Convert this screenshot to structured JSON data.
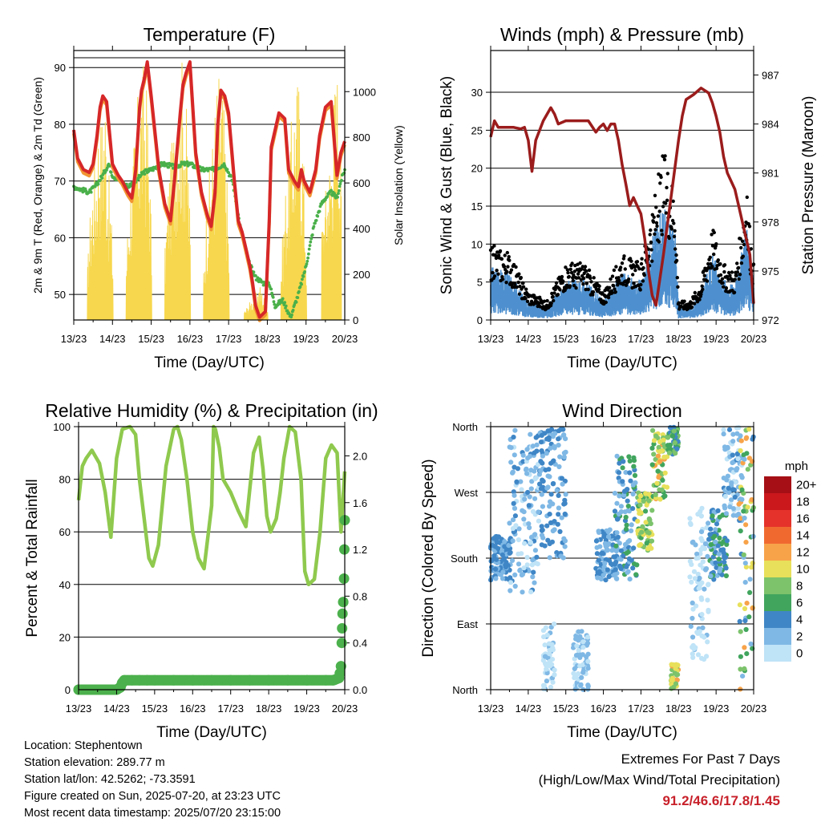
{
  "colors": {
    "t2m": "#d62728",
    "t9m": "#f29533",
    "td": "#4ab04a",
    "solar": "#f7d74d",
    "gust": "#000000",
    "wind": "#4e90cf",
    "pressure": "#9b1c1c",
    "rh": "#8fc94e",
    "precip": "#4cb14c"
  },
  "chart_data": [
    {
      "id": "temperature",
      "type": "line",
      "title": "Temperature (F)",
      "xlabel": "Time (Day/UTC)",
      "ylabel": "2m & 9m T (Red, Orange) & 2m Td (Green)",
      "y2label": "Solar Insolation (Yellow)",
      "xticks": [
        "13/23",
        "14/23",
        "15/23",
        "16/23",
        "17/23",
        "18/23",
        "19/23",
        "20/23"
      ],
      "xlim": [
        0,
        7
      ],
      "ylim": [
        45.5,
        93
      ],
      "yticks": [
        50,
        60,
        70,
        80,
        90
      ],
      "y2lim": [
        0,
        1180
      ],
      "y2ticks": [
        0,
        200,
        400,
        600,
        800,
        1000
      ],
      "grid": true,
      "series": [
        {
          "role": "t2m",
          "x": [
            0,
            0.1,
            0.25,
            0.4,
            0.5,
            0.6,
            0.68,
            0.75,
            0.85,
            1.0,
            1.15,
            1.25,
            1.4,
            1.5,
            1.6,
            1.7,
            1.75,
            1.82,
            1.9,
            2.0,
            2.2,
            2.35,
            2.45,
            2.5,
            2.6,
            2.75,
            2.82,
            2.9,
            3.0,
            3.15,
            3.3,
            3.45,
            3.55,
            3.65,
            3.72,
            3.8,
            3.9,
            4.0,
            4.15,
            4.25,
            4.35,
            4.45,
            4.55,
            4.62,
            4.7,
            4.8,
            4.95,
            5.05,
            5.1,
            5.3,
            5.45,
            5.55,
            5.7,
            5.8,
            5.88,
            5.95,
            6.1,
            6.25,
            6.35,
            6.5,
            6.65,
            6.72,
            6.8,
            6.9,
            7.0
          ],
          "y": [
            79,
            74,
            72,
            71.5,
            73,
            78,
            83,
            85,
            84,
            73,
            71,
            70,
            68,
            67,
            72,
            83,
            86,
            88,
            91,
            85,
            72,
            66,
            64,
            63,
            70,
            82,
            87,
            89,
            91,
            75,
            68,
            64,
            62,
            68,
            80,
            86,
            85,
            82,
            70,
            63,
            61,
            58,
            55,
            52,
            48,
            46,
            47,
            63,
            76,
            82,
            81,
            72,
            70,
            69,
            72,
            70,
            68,
            72,
            78,
            83,
            84,
            78,
            71,
            75,
            77
          ]
        },
        {
          "role": "td",
          "x": [
            0,
            0.2,
            0.4,
            0.55,
            0.75,
            0.9,
            1.0,
            1.2,
            1.4,
            1.6,
            1.8,
            2.0,
            2.3,
            2.6,
            2.8,
            3.0,
            3.3,
            3.6,
            3.9,
            4.1,
            4.3,
            4.5,
            4.7,
            4.9,
            5.05,
            5.2,
            5.4,
            5.6,
            5.8,
            6.0,
            6.2,
            6.4,
            6.5,
            6.65,
            6.8,
            6.9,
            7.0
          ],
          "y": [
            69,
            68.5,
            68,
            69,
            71,
            73,
            71,
            70,
            69,
            70,
            71.5,
            72,
            73,
            72.5,
            73,
            73,
            72,
            72,
            73,
            70,
            62,
            56,
            53,
            52,
            52,
            48,
            49,
            46,
            50,
            55,
            62,
            66,
            67,
            68,
            67,
            70,
            72
          ]
        }
      ],
      "solar_days": [
        {
          "x": [
            0.35,
            0.45,
            0.55,
            0.6,
            0.65,
            0.7,
            0.75,
            0.8,
            0.85,
            0.9,
            0.95,
            1.0
          ],
          "peaks": [
            250,
            600,
            720,
            820,
            1000,
            900,
            1000,
            1100,
            780,
            640,
            520,
            300
          ]
        },
        {
          "x": [
            1.35,
            1.45,
            1.55,
            1.6,
            1.65,
            1.7,
            1.75,
            1.8,
            1.85,
            1.9,
            1.95,
            2.0
          ],
          "peaks": [
            300,
            650,
            800,
            900,
            1010,
            1080,
            1120,
            1150,
            1090,
            980,
            760,
            400
          ]
        },
        {
          "x": [
            2.35,
            2.45,
            2.55,
            2.6,
            2.65,
            2.7,
            2.75,
            2.8,
            2.85,
            2.9,
            2.95,
            3.0
          ],
          "peaks": [
            320,
            680,
            820,
            960,
            1050,
            1100,
            1140,
            1170,
            1120,
            960,
            760,
            420
          ]
        },
        {
          "x": [
            3.35,
            3.45,
            3.55,
            3.6,
            3.65,
            3.7,
            3.75,
            3.8,
            3.85,
            3.9,
            3.95,
            4.0
          ],
          "peaks": [
            280,
            600,
            760,
            880,
            1000,
            1100,
            1120,
            1150,
            1020,
            860,
            640,
            360
          ]
        },
        {
          "x": [
            4.4,
            4.5,
            4.6,
            4.7,
            4.8,
            4.9,
            5.0
          ],
          "peaks": [
            40,
            70,
            100,
            120,
            160,
            110,
            60
          ]
        },
        {
          "x": [
            5.35,
            5.45,
            5.55,
            5.6,
            5.65,
            5.7,
            5.75,
            5.8,
            5.85,
            5.9,
            5.95,
            6.0
          ],
          "peaks": [
            260,
            580,
            740,
            860,
            960,
            1050,
            1100,
            1080,
            1000,
            880,
            640,
            360
          ]
        },
        {
          "x": [
            6.4,
            6.5,
            6.6,
            6.65,
            6.7,
            6.75,
            6.8,
            6.85,
            6.9
          ],
          "peaks": [
            420,
            600,
            740,
            820,
            1000,
            1100,
            1150,
            980,
            640
          ]
        }
      ]
    },
    {
      "id": "winds",
      "type": "scatter",
      "title": "Winds (mph) & Pressure (mb)",
      "xlabel": "Time (Day/UTC)",
      "ylabel": "Sonic Wind & Gust (Blue, Black)",
      "y2label": "Station Pressure (Maroon)",
      "xticks": [
        "13/23",
        "14/23",
        "15/23",
        "16/23",
        "17/23",
        "18/23",
        "19/23",
        "20/23"
      ],
      "xlim": [
        0,
        7
      ],
      "ylim": [
        0,
        35.5
      ],
      "yticks": [
        0,
        5,
        10,
        15,
        20,
        25,
        30
      ],
      "y2lim": [
        972,
        988.5
      ],
      "y2ticks": [
        972,
        975,
        978,
        981,
        984,
        987
      ],
      "grid": true,
      "speed_env": {
        "x": [
          0,
          0.5,
          1.0,
          1.5,
          2.0,
          2.5,
          3.0,
          3.5,
          4.0,
          4.3,
          4.6,
          4.9,
          5.0,
          5.3,
          5.6,
          5.9,
          6.2,
          6.5,
          6.8,
          7.0
        ],
        "y": [
          4,
          3.5,
          1.5,
          1,
          3,
          3,
          1.5,
          3.5,
          3,
          6,
          9,
          7,
          1,
          1,
          2,
          5,
          3,
          2.5,
          7,
          3
        ]
      },
      "pressure": {
        "x": [
          0,
          0.1,
          0.2,
          0.4,
          0.6,
          0.8,
          0.9,
          1.0,
          1.1,
          1.2,
          1.4,
          1.6,
          1.7,
          1.8,
          2.0,
          2.2,
          2.4,
          2.6,
          2.8,
          2.9,
          3.0,
          3.1,
          3.2,
          3.3,
          3.4,
          3.5,
          3.6,
          3.7,
          3.8,
          3.9,
          4.0,
          4.1,
          4.2,
          4.3,
          4.4,
          4.6,
          4.8,
          5.0,
          5.1,
          5.2,
          5.4,
          5.6,
          5.8,
          5.9,
          6.0,
          6.1,
          6.2,
          6.3,
          6.4,
          6.5,
          6.6,
          6.7,
          6.8,
          6.9,
          7.0
        ],
        "y": [
          983.2,
          984.2,
          983.8,
          983.8,
          983.8,
          983.7,
          983.8,
          983.0,
          981.1,
          983.0,
          984.2,
          985.0,
          984.6,
          984.0,
          984.2,
          984.2,
          984.2,
          984.2,
          983.5,
          983.8,
          984.0,
          983.6,
          984.0,
          984.0,
          983.0,
          981.5,
          980.3,
          979.0,
          979.5,
          979.0,
          978.5,
          977.0,
          975.0,
          973.5,
          972.9,
          976.0,
          979.5,
          983.0,
          984.5,
          985.5,
          985.8,
          986.2,
          985.9,
          985.3,
          984.5,
          983.5,
          982.0,
          981.0,
          980.5,
          980.0,
          979.0,
          978.0,
          977.0,
          976.0,
          973.0
        ]
      }
    },
    {
      "id": "humidity",
      "type": "line",
      "title": "Relative Humidity (%) & Precipitation (in)",
      "xlabel": "Time (Day/UTC)",
      "ylabel": "Percent & Total Rainfall",
      "xticks": [
        "13/23",
        "14/23",
        "15/23",
        "16/23",
        "17/23",
        "18/23",
        "19/23",
        "20/23"
      ],
      "xlim": [
        0,
        7
      ],
      "ylim": [
        0,
        100
      ],
      "yticks": [
        0,
        20,
        40,
        60,
        80,
        100
      ],
      "y2lim": [
        0,
        2.25
      ],
      "y2ticks": [
        "0.0",
        "0.4",
        "0.8",
        "1.2",
        "1.6",
        "2.0"
      ],
      "grid": true,
      "rh": {
        "x": [
          0,
          0.1,
          0.2,
          0.35,
          0.55,
          0.7,
          0.85,
          1.0,
          1.15,
          1.35,
          1.5,
          1.6,
          1.75,
          1.85,
          1.95,
          2.1,
          2.3,
          2.5,
          2.6,
          2.7,
          2.85,
          3.0,
          3.15,
          3.3,
          3.5,
          3.55,
          3.6,
          3.7,
          3.8,
          4.0,
          4.2,
          4.4,
          4.6,
          4.75,
          4.85,
          4.95,
          5.05,
          5.2,
          5.3,
          5.4,
          5.55,
          5.7,
          5.85,
          5.95,
          6.05,
          6.2,
          6.35,
          6.5,
          6.65,
          6.8,
          6.9,
          7.0
        ],
        "y": [
          72,
          85,
          88,
          91,
          86,
          75,
          58,
          88,
          99,
          100,
          97,
          80,
          62,
          50,
          47,
          55,
          85,
          99,
          100,
          95,
          80,
          60,
          50,
          46,
          70,
          100,
          99,
          92,
          80,
          75,
          68,
          62,
          90,
          96,
          84,
          66,
          60,
          65,
          75,
          88,
          100,
          98,
          80,
          45,
          40,
          42,
          60,
          88,
          93,
          90,
          60,
          83
        ]
      },
      "precip_x": [
        0,
        0.2,
        0.4,
        0.6,
        0.8,
        1.0,
        1.1,
        1.15,
        1.2,
        1.4,
        1.6,
        1.8,
        2.0,
        2.5,
        3.0,
        3.5,
        4.0,
        4.5,
        5.0,
        5.5,
        6.0,
        6.5,
        6.7,
        6.85,
        6.9,
        6.92,
        6.94,
        6.96,
        6.98,
        7.0
      ],
      "precip_y": [
        0,
        0,
        0,
        0,
        0,
        0,
        0.02,
        0.06,
        0.08,
        0.08,
        0.08,
        0.08,
        0.08,
        0.08,
        0.08,
        0.08,
        0.08,
        0.08,
        0.08,
        0.08,
        0.08,
        0.08,
        0.08,
        0.1,
        0.2,
        0.4,
        0.65,
        0.75,
        0.95,
        1.45
      ]
    },
    {
      "id": "direction",
      "type": "scatter",
      "title": "Wind Direction",
      "xlabel": "Time (Day/UTC)",
      "ylabel": "Direction (Colored By Speed)",
      "xticks": [
        "13/23",
        "14/23",
        "15/23",
        "16/23",
        "17/23",
        "18/23",
        "19/23",
        "20/23"
      ],
      "xlim": [
        0,
        7
      ],
      "ylim": [
        0,
        360
      ],
      "ytick_labels": [
        "North",
        "East",
        "South",
        "West",
        "North"
      ],
      "grid": true,
      "colorbar_title": "mph",
      "colorbar_labels": [
        "20+",
        "18",
        "16",
        "14",
        "12",
        "10",
        "8",
        "6",
        "4",
        "2",
        "0"
      ],
      "colorbar_colors": [
        "#a50f15",
        "#cb181d",
        "#e5322a",
        "#f06a30",
        "#f7a34a",
        "#e8e05a",
        "#7cc36c",
        "#41a55e",
        "#3f86c6",
        "#7fb8e5",
        "#bfe3f7"
      ],
      "clusters": [
        {
          "x0": 0.0,
          "x1": 0.55,
          "y0": 150,
          "y1": 210,
          "spd": [
            3,
            6
          ]
        },
        {
          "x0": 0.5,
          "x1": 1.3,
          "y0": 130,
          "y1": 360,
          "spd": [
            1,
            5
          ]
        },
        {
          "x0": 1.3,
          "x1": 2.0,
          "y0": 180,
          "y1": 360,
          "spd": [
            2,
            6
          ]
        },
        {
          "x0": 1.4,
          "x1": 1.7,
          "y0": 0,
          "y1": 90,
          "spd": [
            0,
            3
          ]
        },
        {
          "x0": 2.2,
          "x1": 2.6,
          "y0": 0,
          "y1": 80,
          "spd": [
            1,
            4
          ]
        },
        {
          "x0": 2.8,
          "x1": 3.4,
          "y0": 150,
          "y1": 220,
          "spd": [
            2,
            6
          ]
        },
        {
          "x0": 3.3,
          "x1": 3.9,
          "y0": 150,
          "y1": 320,
          "spd": [
            2,
            8
          ]
        },
        {
          "x0": 3.9,
          "x1": 4.3,
          "y0": 190,
          "y1": 270,
          "spd": [
            7,
            12
          ]
        },
        {
          "x0": 4.3,
          "x1": 4.7,
          "y0": 260,
          "y1": 355,
          "spd": [
            7,
            13
          ]
        },
        {
          "x0": 4.7,
          "x1": 5.0,
          "y0": 320,
          "y1": 360,
          "spd": [
            4,
            10
          ]
        },
        {
          "x0": 4.8,
          "x1": 5.0,
          "y0": 0,
          "y1": 35,
          "spd": [
            8,
            13
          ]
        },
        {
          "x0": 5.3,
          "x1": 5.8,
          "y0": 40,
          "y1": 250,
          "spd": [
            0,
            3
          ]
        },
        {
          "x0": 5.8,
          "x1": 6.3,
          "y0": 150,
          "y1": 250,
          "spd": [
            3,
            8
          ]
        },
        {
          "x0": 6.2,
          "x1": 6.7,
          "y0": 230,
          "y1": 360,
          "spd": [
            1,
            5
          ]
        },
        {
          "x0": 6.6,
          "x1": 7.0,
          "y0": 0,
          "y1": 360,
          "spd": [
            2,
            14
          ]
        }
      ]
    }
  ],
  "info": {
    "location": "Location: Stephentown",
    "elevation": "Station elevation: 289.77 m",
    "latlon": "Station lat/lon: 42.5262; -73.3591",
    "created": "Figure created on Sun, 2025-07-20, at 23:23 UTC",
    "recent": "Most recent data timestamp: 2025/07/20 23:15:00"
  },
  "extremes": {
    "heading": "Extremes For Past 7 Days",
    "sub": "(High/Low/Max Wind/Total Precipitation)",
    "values": "91.2/46.6/17.8/1.45"
  }
}
